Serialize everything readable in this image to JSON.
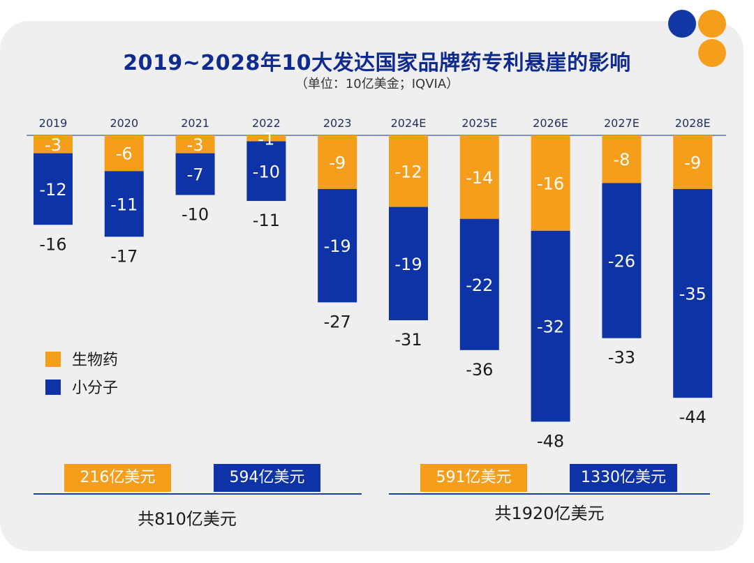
{
  "header": {
    "title": "2019~2028年10大发达国家品牌药专利悬崖的影响",
    "subtitle": "（单位：10亿美金；IQVIA）"
  },
  "colors": {
    "orange": "#f59e1c",
    "blue": "#0d33a6",
    "axis": "#3a55b5",
    "bg": "#efefef"
  },
  "legend": {
    "bio": "生物药",
    "small": "小分子"
  },
  "summary": {
    "left": {
      "bio_box": "216亿美元",
      "small_box": "594亿美元",
      "total": "共810亿美元"
    },
    "right": {
      "bio_box": "591亿美元",
      "small_box": "1330亿美元",
      "total": "共1920亿美元"
    }
  },
  "chart_data": {
    "type": "bar",
    "stacked": true,
    "categories": [
      "2019",
      "2020",
      "2021",
      "2022",
      "2023",
      "2024E",
      "2025E",
      "2026E",
      "2027E",
      "2028E"
    ],
    "series": [
      {
        "name": "生物药",
        "values": [
          -3,
          -6,
          -3,
          -1,
          -9,
          -12,
          -14,
          -16,
          -8,
          -9
        ]
      },
      {
        "name": "小分子",
        "values": [
          -12,
          -11,
          -7,
          -10,
          -19,
          -19,
          -22,
          -32,
          -26,
          -35
        ]
      }
    ],
    "totals": [
      -16,
      -17,
      -10,
      -11,
      -27,
      -31,
      -36,
      -48,
      -33,
      -44
    ],
    "ylim": [
      -48,
      0
    ]
  }
}
